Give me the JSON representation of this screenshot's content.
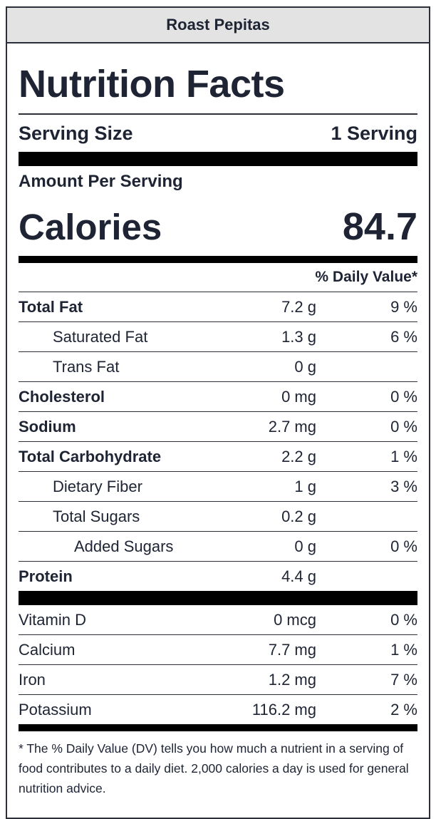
{
  "recipe_name": "Roast Pepitas",
  "title": "Nutrition Facts",
  "serving": {
    "label": "Serving Size",
    "value": "1 Serving"
  },
  "amount_per_serving": "Amount Per Serving",
  "calories": {
    "label": "Calories",
    "value": "84.7"
  },
  "daily_value_header": "% Daily Value*",
  "nutrients": [
    {
      "name": "Total Fat",
      "amount": "7.2 g",
      "dv": "9 %"
    },
    {
      "name": "Saturated Fat",
      "amount": "1.3 g",
      "dv": "6 %"
    },
    {
      "name": "Trans Fat",
      "amount": "0 g",
      "dv": ""
    },
    {
      "name": "Cholesterol",
      "amount": "0 mg",
      "dv": "0 %"
    },
    {
      "name": "Sodium",
      "amount": "2.7 mg",
      "dv": "0 %"
    },
    {
      "name": "Total Carbohydrate",
      "amount": "2.2 g",
      "dv": "1 %"
    },
    {
      "name": "Dietary Fiber",
      "amount": "1 g",
      "dv": "3 %"
    },
    {
      "name": "Total Sugars",
      "amount": "0.2 g",
      "dv": ""
    },
    {
      "name": "Added Sugars",
      "amount": "0 g",
      "dv": "0 %"
    },
    {
      "name": "Protein",
      "amount": "4.4 g",
      "dv": ""
    }
  ],
  "vitamins": [
    {
      "name": "Vitamin D",
      "amount": "0 mcg",
      "dv": "0 %"
    },
    {
      "name": "Calcium",
      "amount": "7.7 mg",
      "dv": "1 %"
    },
    {
      "name": "Iron",
      "amount": "1.2 mg",
      "dv": "7 %"
    },
    {
      "name": "Potassium",
      "amount": "116.2 mg",
      "dv": "2 %"
    }
  ],
  "footnote": "* The % Daily Value (DV) tells you how much a nutrient in a serving of food contributes to a daily diet. 2,000 calories a day is used for general nutrition advice."
}
